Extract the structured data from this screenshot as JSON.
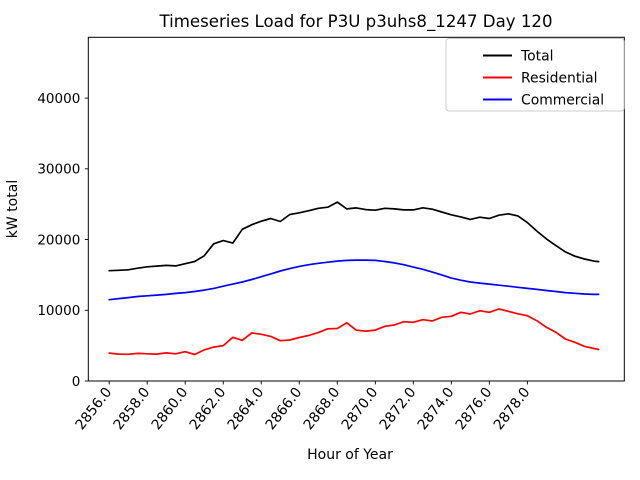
{
  "figure": {
    "background": "#ffffff"
  },
  "chart_data": {
    "type": "line",
    "title": "Timeseries Load for P3U p3uhs8_1247  Day 120",
    "xlabel": "Hour of Year",
    "ylabel": "kW total",
    "grid": false,
    "legend_position": "upper right",
    "axis_color": "#000000",
    "legend_border_color": "#cccccc",
    "xlim": [
      2854.9,
      2883.1
    ],
    "ylim": [
      0,
      48600
    ],
    "x_ticks": [
      2856,
      2858,
      2860,
      2862,
      2864,
      2866,
      2868,
      2870,
      2872,
      2874,
      2876,
      2878
    ],
    "x_tick_labels": [
      "2856.0",
      "2858.0",
      "2860.0",
      "2862.0",
      "2864.0",
      "2866.0",
      "2868.0",
      "2870.0",
      "2872.0",
      "2874.0",
      "2876.0",
      "2878.0"
    ],
    "y_ticks": [
      0,
      10000,
      20000,
      30000,
      40000
    ],
    "y_tick_labels": [
      "0",
      "10000",
      "20000",
      "30000",
      "40000"
    ],
    "x": [
      2856,
      2856.5,
      2857,
      2857.5,
      2858,
      2858.5,
      2859,
      2859.5,
      2860,
      2860.5,
      2861,
      2861.5,
      2862,
      2862.5,
      2863,
      2863.5,
      2864,
      2864.5,
      2865,
      2865.5,
      2866,
      2866.5,
      2867,
      2867.5,
      2868,
      2868.5,
      2869,
      2869.5,
      2870,
      2870.5,
      2871,
      2871.5,
      2872,
      2872.5,
      2873,
      2873.5,
      2874,
      2874.5,
      2875,
      2875.5,
      2876,
      2876.5,
      2877,
      2877.5,
      2878,
      2878.5,
      2879,
      2879.5,
      2880,
      2880.5,
      2881,
      2881.5,
      2881.75
    ],
    "series": [
      {
        "name": "Total",
        "color": "#000000",
        "values": [
          15600,
          15650,
          15720,
          15950,
          16150,
          16250,
          16350,
          16280,
          16580,
          16900,
          17700,
          19400,
          19850,
          19500,
          21450,
          22100,
          22600,
          22980,
          22550,
          23540,
          23780,
          24080,
          24420,
          24570,
          25300,
          24330,
          24470,
          24230,
          24150,
          24420,
          24330,
          24190,
          24190,
          24490,
          24300,
          23900,
          23500,
          23200,
          22850,
          23160,
          22980,
          23450,
          23640,
          23350,
          22400,
          21200,
          20100,
          19150,
          18250,
          17650,
          17250,
          16950,
          16880
        ]
      },
      {
        "name": "Residential",
        "color": "#ff0000",
        "values": [
          3950,
          3800,
          3780,
          3900,
          3850,
          3800,
          3980,
          3850,
          4150,
          3750,
          4400,
          4800,
          5000,
          6180,
          5750,
          6800,
          6600,
          6300,
          5700,
          5800,
          6150,
          6450,
          6850,
          7380,
          7430,
          8230,
          7180,
          7060,
          7200,
          7740,
          7920,
          8390,
          8300,
          8670,
          8490,
          9010,
          9150,
          9720,
          9480,
          9940,
          9720,
          10180,
          9860,
          9500,
          9240,
          8530,
          7600,
          6890,
          5940,
          5470,
          4910,
          4600,
          4450
        ]
      },
      {
        "name": "Commercial",
        "color": "#0000ff",
        "values": [
          11500,
          11650,
          11800,
          11950,
          12050,
          12150,
          12250,
          12380,
          12500,
          12650,
          12850,
          13100,
          13400,
          13700,
          14000,
          14350,
          14750,
          15150,
          15550,
          15900,
          16200,
          16450,
          16650,
          16800,
          16950,
          17050,
          17100,
          17100,
          17050,
          16900,
          16700,
          16450,
          16100,
          15800,
          15400,
          15000,
          14550,
          14250,
          14000,
          13850,
          13700,
          13550,
          13400,
          13250,
          13100,
          12950,
          12800,
          12650,
          12500,
          12400,
          12300,
          12250,
          12250
        ]
      }
    ]
  }
}
